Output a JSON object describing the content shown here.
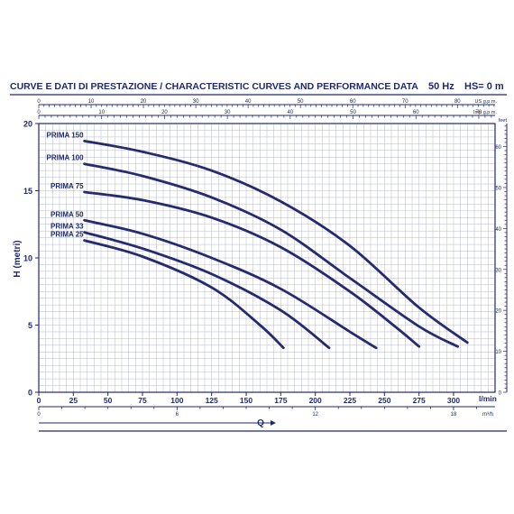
{
  "header": {
    "title": "CURVE E DATI DI PRESTAZIONE / CHARACTERISTIC CURVES AND PERFORMANCE DATA",
    "freq": "50 Hz",
    "hs": "HS= 0 m"
  },
  "colors": {
    "ink": "#1f2a6b",
    "grid": "#b5b9c9",
    "curve": "#262a6e"
  },
  "chart_data": {
    "type": "line",
    "xlabel": "Q",
    "ylabel": "H (metri)",
    "xlim": [
      0,
      330
    ],
    "ylim": [
      0,
      20
    ],
    "x_unit": "l/min",
    "y_ticks": [
      0,
      5,
      10,
      15,
      20
    ],
    "x_ticks": [
      0,
      25,
      50,
      75,
      100,
      125,
      150,
      175,
      200,
      225,
      250,
      275,
      300
    ],
    "top_axes": [
      {
        "unit": "US g.p.m.",
        "ticks": [
          0,
          10,
          20,
          30,
          40,
          50,
          60,
          70,
          80
        ],
        "lpm_per_unit": 3.785
      },
      {
        "unit": "Imp g.p.m.",
        "ticks": [
          0,
          10,
          20,
          30,
          40,
          50,
          60,
          70
        ],
        "lpm_per_unit": 4.546
      }
    ],
    "bottom_axis": {
      "unit": "m³/h",
      "ticks": [
        0,
        6,
        12,
        18
      ],
      "lpm_per_unit": 16.667
    },
    "right_axis": {
      "unit": "feet",
      "ticks": [
        0,
        10,
        20,
        30,
        40,
        50,
        60
      ],
      "m_per_unit": 0.3048
    },
    "series": [
      {
        "name": "PRIMA 150",
        "x": [
          33,
          75,
          125,
          175,
          225,
          275,
          310
        ],
        "y": [
          18.7,
          17.9,
          16.5,
          14.2,
          10.9,
          6.3,
          3.7
        ]
      },
      {
        "name": "PRIMA 100",
        "x": [
          33,
          75,
          125,
          175,
          225,
          275,
          303
        ],
        "y": [
          17.0,
          16.1,
          14.5,
          12.1,
          8.5,
          4.9,
          3.4
        ]
      },
      {
        "name": "PRIMA 75",
        "x": [
          33,
          75,
          125,
          175,
          225,
          260,
          275
        ],
        "y": [
          14.9,
          14.3,
          13.0,
          10.8,
          7.5,
          4.7,
          3.4
        ]
      },
      {
        "name": "PRIMA 50",
        "x": [
          33,
          75,
          125,
          175,
          225,
          244
        ],
        "y": [
          12.8,
          11.8,
          10.0,
          7.7,
          4.5,
          3.3
        ]
      },
      {
        "name": "PRIMA 33",
        "x": [
          33,
          75,
          125,
          175,
          210
        ],
        "y": [
          11.9,
          10.7,
          8.8,
          6.1,
          3.3
        ]
      },
      {
        "name": "PRIMA 25",
        "x": [
          33,
          75,
          125,
          160,
          177
        ],
        "y": [
          11.3,
          10.1,
          7.8,
          5.0,
          3.3
        ]
      }
    ]
  }
}
